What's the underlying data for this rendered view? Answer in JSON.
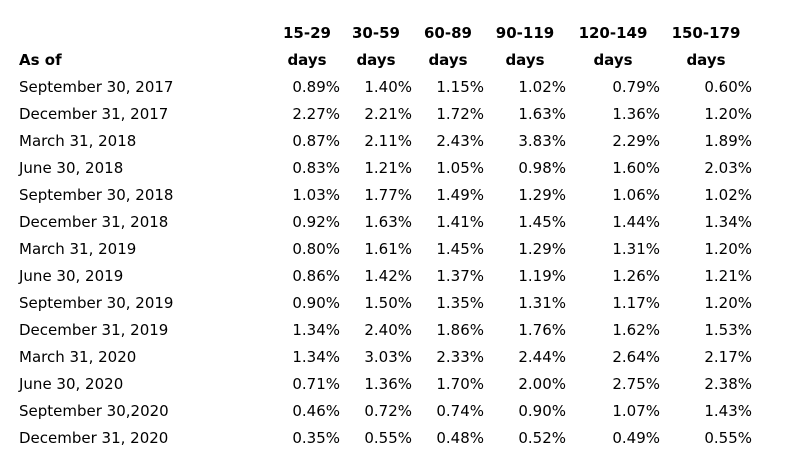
{
  "table": {
    "as_of_label": "As of",
    "columns": [
      {
        "line1": "15-29",
        "line2": "days"
      },
      {
        "line1": "30-59",
        "line2": "days"
      },
      {
        "line1": "60-89",
        "line2": "days"
      },
      {
        "line1": "90-119",
        "line2": "days"
      },
      {
        "line1": "120-149",
        "line2": "days"
      },
      {
        "line1": "150-179",
        "line2": "days"
      }
    ],
    "rows": [
      {
        "date": "September 30, 2017",
        "values": [
          "0.89%",
          "1.40%",
          "1.15%",
          "1.02%",
          "0.79%",
          "0.60%"
        ]
      },
      {
        "date": "December 31, 2017",
        "values": [
          "2.27%",
          "2.21%",
          "1.72%",
          "1.63%",
          "1.36%",
          "1.20%"
        ]
      },
      {
        "date": "March 31, 2018",
        "values": [
          "0.87%",
          "2.11%",
          "2.43%",
          "3.83%",
          "2.29%",
          "1.89%"
        ]
      },
      {
        "date": "June 30, 2018",
        "values": [
          "0.83%",
          "1.21%",
          "1.05%",
          "0.98%",
          "1.60%",
          "2.03%"
        ]
      },
      {
        "date": "September 30, 2018",
        "values": [
          "1.03%",
          "1.77%",
          "1.49%",
          "1.29%",
          "1.06%",
          "1.02%"
        ]
      },
      {
        "date": "December 31, 2018",
        "values": [
          "0.92%",
          "1.63%",
          "1.41%",
          "1.45%",
          "1.44%",
          "1.34%"
        ]
      },
      {
        "date": "March 31, 2019",
        "values": [
          "0.80%",
          "1.61%",
          "1.45%",
          "1.29%",
          "1.31%",
          "1.20%"
        ]
      },
      {
        "date": "June 30, 2019",
        "values": [
          "0.86%",
          "1.42%",
          "1.37%",
          "1.19%",
          "1.26%",
          "1.21%"
        ]
      },
      {
        "date": "September 30, 2019",
        "values": [
          "0.90%",
          "1.50%",
          "1.35%",
          "1.31%",
          "1.17%",
          "1.20%"
        ]
      },
      {
        "date": "December 31, 2019",
        "values": [
          "1.34%",
          "2.40%",
          "1.86%",
          "1.76%",
          "1.62%",
          "1.53%"
        ]
      },
      {
        "date": "March 31, 2020",
        "values": [
          "1.34%",
          "3.03%",
          "2.33%",
          "2.44%",
          "2.64%",
          "2.17%"
        ]
      },
      {
        "date": "June 30, 2020",
        "values": [
          "0.71%",
          "1.36%",
          "1.70%",
          "2.00%",
          "2.75%",
          "2.38%"
        ]
      },
      {
        "date": "September 30,2020",
        "values": [
          "0.46%",
          "0.72%",
          "0.74%",
          "0.90%",
          "1.07%",
          "1.43%"
        ]
      },
      {
        "date": "December 31, 2020",
        "values": [
          "0.35%",
          "0.55%",
          "0.48%",
          "0.52%",
          "0.49%",
          "0.55%"
        ]
      }
    ]
  }
}
